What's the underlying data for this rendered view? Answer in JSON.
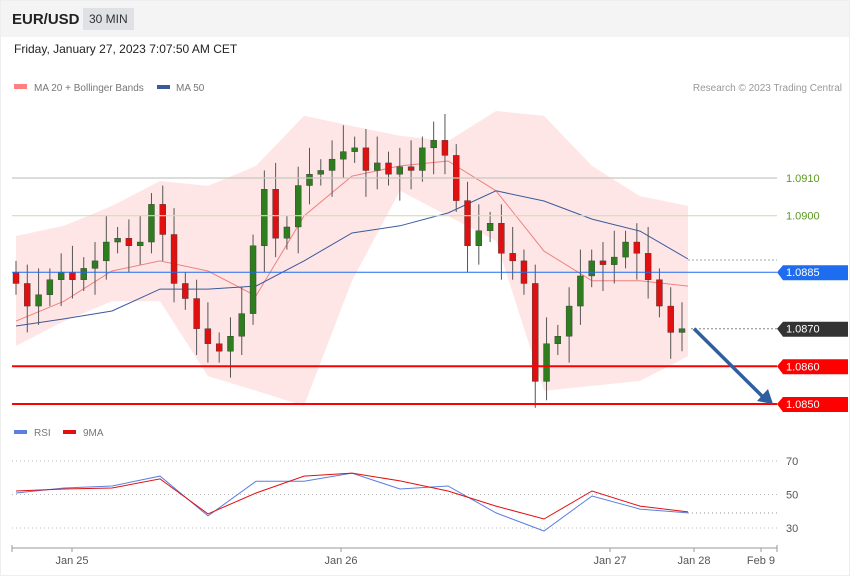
{
  "header": {
    "symbol": "EUR/USD",
    "timeframe": "30 MIN",
    "datetime": "Friday, January 27, 2023 7:07:50 AM CET"
  },
  "legend": {
    "bb": "MA 20 + Bollinger Bands",
    "ma50": "MA 50",
    "copyright": "Research © 2023 Trading Central",
    "rsi": "RSI",
    "ma9": "9MA"
  },
  "colors": {
    "up": "#2e7d1e",
    "down": "#e01010",
    "band": "#ffe3e3",
    "ma20": "#f08080",
    "ma50": "#3a5a9c",
    "rsi": "#5b7fe0",
    "ma9": "#e01010",
    "support": "#ff0000",
    "pivot": "#1e6cf0",
    "last": "#333333",
    "resistance": "#5a9a20",
    "arrow": "#2f5f9f"
  },
  "chart_data": [
    {
      "type": "candlestick",
      "ylim": [
        1.0848,
        1.0935
      ],
      "price_levels": [
        {
          "label": "1.0910",
          "value": 1.091,
          "kind": "resistance"
        },
        {
          "label": "1.0900",
          "value": 1.09,
          "kind": "resistance"
        },
        {
          "label": "1.0885",
          "value": 1.0885,
          "kind": "pivot"
        },
        {
          "label": "1.0870",
          "value": 1.087,
          "kind": "last"
        },
        {
          "label": "1.0860",
          "value": 1.086,
          "kind": "support"
        },
        {
          "label": "1.0850",
          "value": 1.085,
          "kind": "support"
        }
      ],
      "x_ticks": [
        "Jan 25",
        "Jan 26",
        "Jan 27",
        "Jan 28",
        "Feb 9"
      ],
      "closes": [
        1.0882,
        1.0876,
        1.0879,
        1.0883,
        1.0885,
        1.0883,
        1.0886,
        1.0888,
        1.0893,
        1.0894,
        1.0892,
        1.0893,
        1.0903,
        1.0895,
        1.0882,
        1.0878,
        1.087,
        1.0866,
        1.0864,
        1.0868,
        1.0874,
        1.0892,
        1.0907,
        1.0894,
        1.0897,
        1.0908,
        1.0911,
        1.0912,
        1.0915,
        1.0917,
        1.0918,
        1.0912,
        1.0914,
        1.0911,
        1.0913,
        1.0912,
        1.0918,
        1.092,
        1.0916,
        1.0904,
        1.0892,
        1.0896,
        1.0898,
        1.089,
        1.0888,
        1.0882,
        1.0856,
        1.0866,
        1.0868,
        1.0876,
        1.0884,
        1.0888,
        1.0887,
        1.0889,
        1.0893,
        1.089,
        1.0883,
        1.0876,
        1.0869,
        1.087
      ],
      "bb_upper": [
        1.08946,
        1.08973,
        1.09026,
        1.09092,
        1.09079,
        1.09132,
        1.09265,
        1.09238,
        1.09212,
        1.09198,
        1.09278,
        1.09265,
        1.09132,
        1.09052,
        1.09026
      ],
      "bb_lower": [
        1.08654,
        1.0872,
        1.08773,
        1.08773,
        1.08574,
        1.08535,
        1.08495,
        1.08827,
        1.09066,
        1.08999,
        1.08933,
        1.08535,
        1.08548,
        1.08561,
        1.08627
      ],
      "ma20": [
        1.0872,
        1.08773,
        1.08853,
        1.0888,
        1.08853,
        1.08787,
        1.08999,
        1.09105,
        1.09132,
        1.09145,
        1.09066,
        1.08906,
        1.08827,
        1.08827,
        1.08813
      ],
      "ma50": [
        1.08707,
        1.08726,
        1.08747,
        1.08805,
        1.08805,
        1.08813,
        1.0888,
        1.08954,
        1.08973,
        1.09007,
        1.09066,
        1.09039,
        1.08991,
        1.08959,
        1.08885
      ],
      "forecast_arrow": {
        "from": 1.087,
        "to": 1.085
      }
    },
    {
      "type": "line",
      "ylim": [
        20,
        80
      ],
      "y_ticks": [
        "70",
        "50",
        "30"
      ],
      "series": [
        {
          "name": "RSI",
          "values": [
            50.9,
            53.9,
            55.1,
            61,
            37.2,
            57.9,
            57.9,
            62.8,
            53.3,
            55.1,
            39,
            28.2,
            49.1,
            41.3,
            39
          ]
        },
        {
          "name": "9MA",
          "values": [
            52.1,
            53.3,
            53.9,
            59.3,
            38.4,
            50.9,
            61,
            62.8,
            58.1,
            52.1,
            43.1,
            35.4,
            52.1,
            43.1,
            39.6
          ]
        }
      ]
    }
  ]
}
